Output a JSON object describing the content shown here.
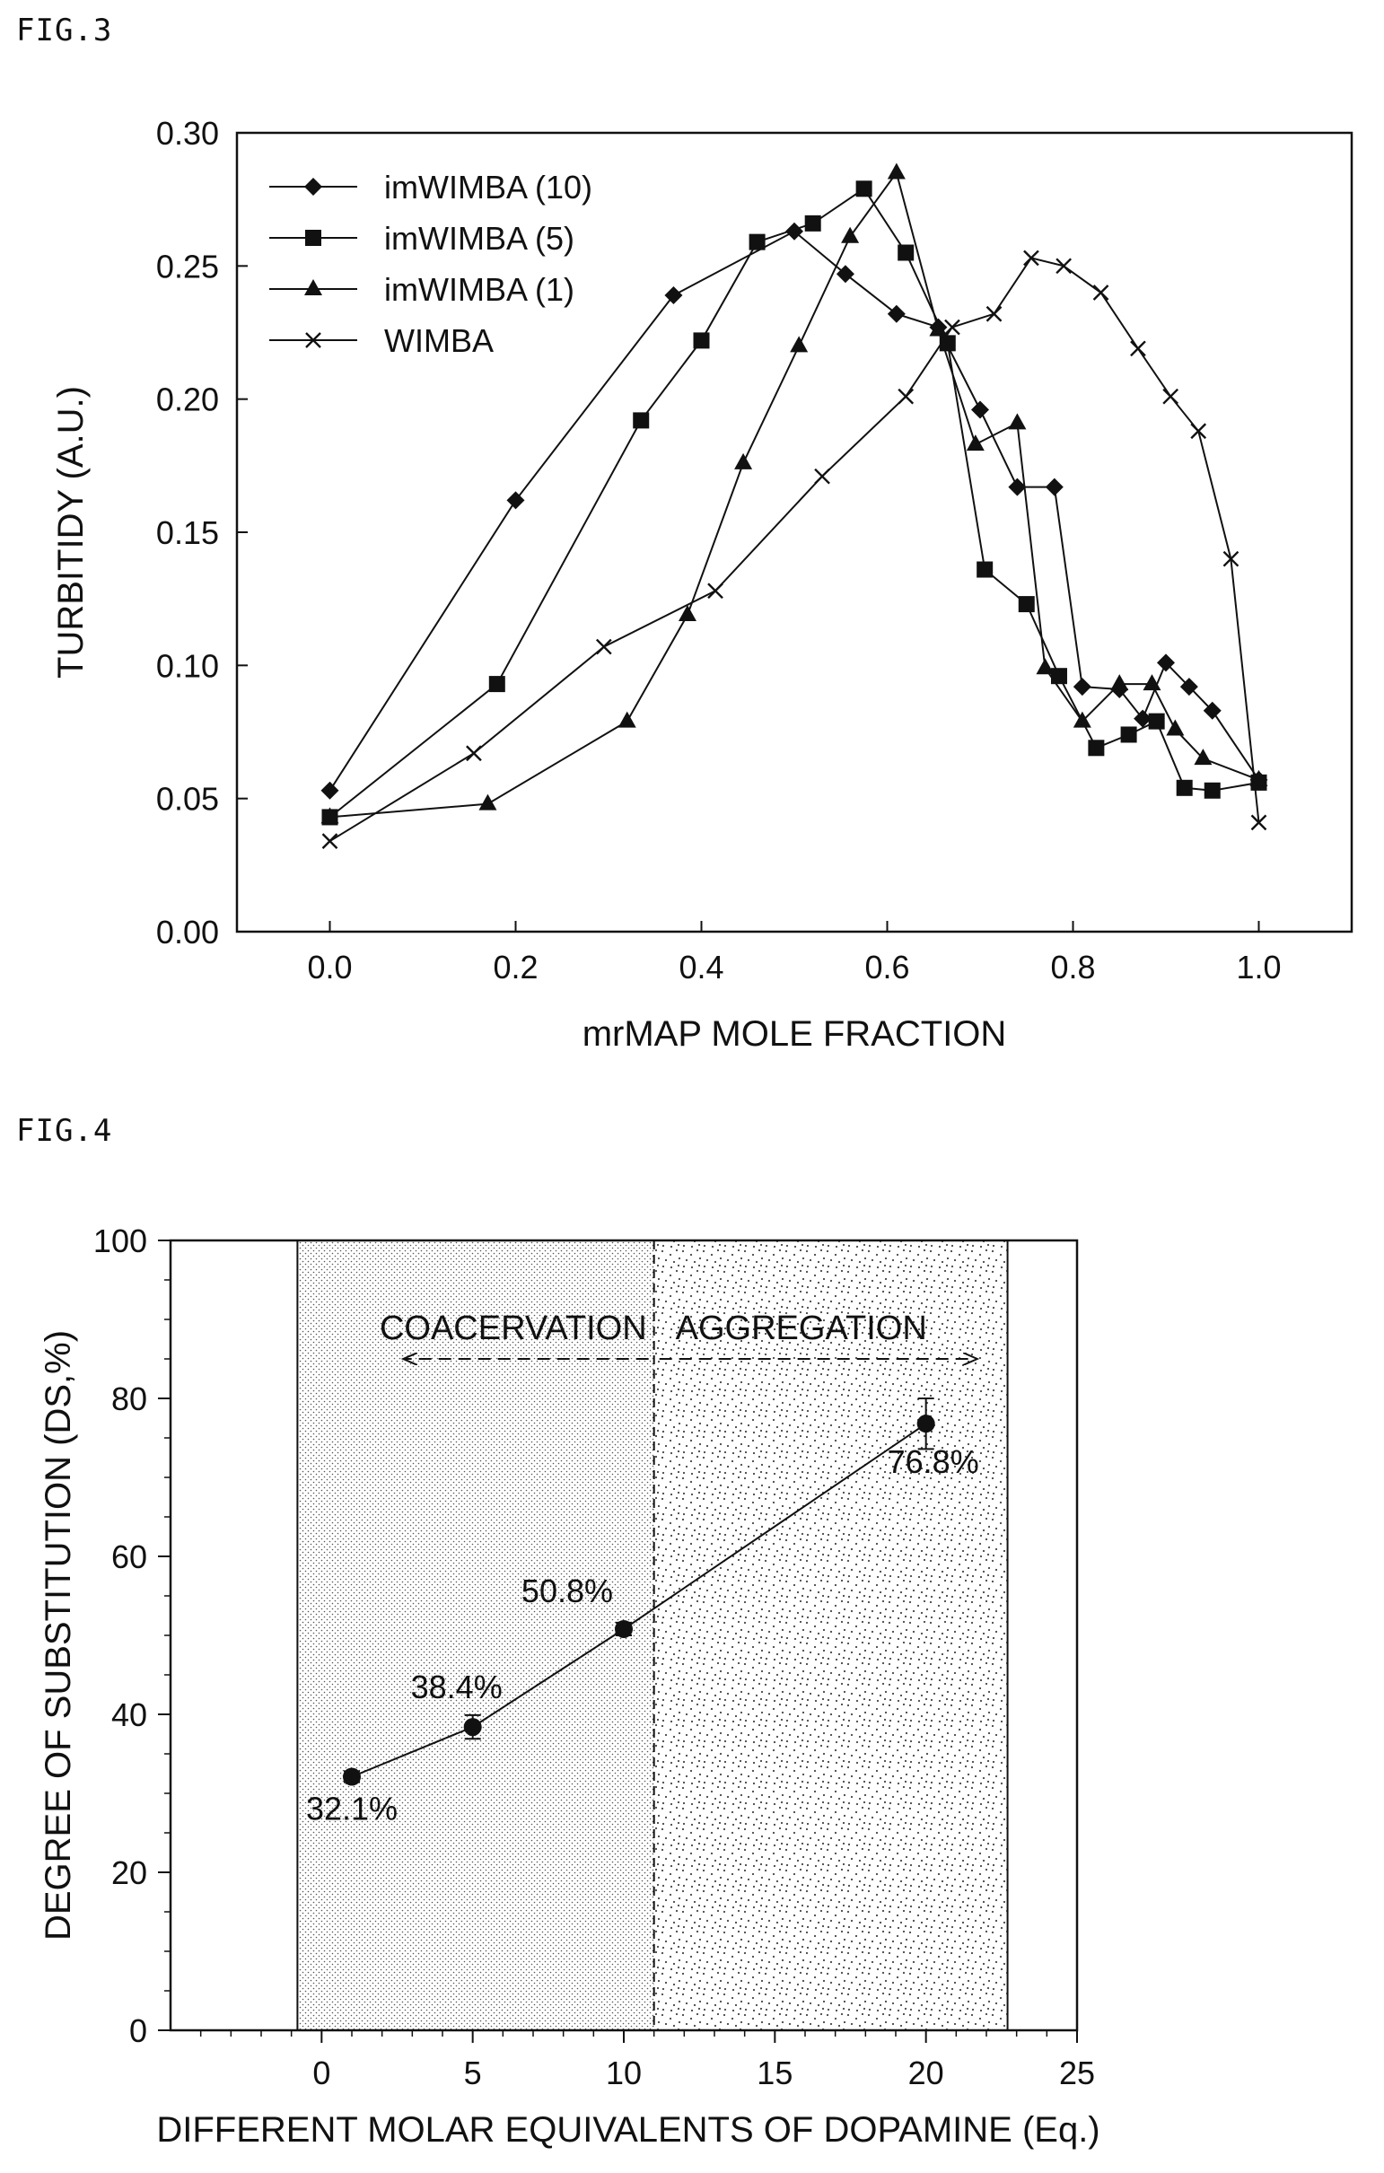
{
  "fig3": {
    "figure_label": "FIG.3",
    "chart_data": {
      "type": "line",
      "xlabel": "mrMAP MOLE FRACTION",
      "ylabel": "TURBITIDY (A.U.)",
      "xlim": [
        -0.1,
        1.1
      ],
      "ylim": [
        0.0,
        0.3
      ],
      "xticks": [
        "0.0",
        "0.2",
        "0.4",
        "0.6",
        "0.8",
        "1.0"
      ],
      "yticks": [
        "0.00",
        "0.05",
        "0.10",
        "0.15",
        "0.20",
        "0.25",
        "0.30"
      ],
      "legend_position": "top-left",
      "grid": false,
      "series": [
        {
          "name": "imWIMBA (10)",
          "marker": "diamond",
          "x": [
            0.0,
            0.2,
            0.37,
            0.5,
            0.555,
            0.61,
            0.655,
            0.7,
            0.74,
            0.78,
            0.81,
            0.85,
            0.875,
            0.9,
            0.925,
            0.95,
            1.0
          ],
          "y": [
            0.053,
            0.162,
            0.239,
            0.263,
            0.247,
            0.232,
            0.227,
            0.196,
            0.167,
            0.167,
            0.092,
            0.091,
            0.08,
            0.101,
            0.092,
            0.083,
            0.057
          ]
        },
        {
          "name": "imWIMBA (5)",
          "marker": "square",
          "x": [
            0.0,
            0.18,
            0.335,
            0.4,
            0.46,
            0.52,
            0.575,
            0.62,
            0.665,
            0.705,
            0.75,
            0.785,
            0.825,
            0.86,
            0.89,
            0.92,
            0.95,
            1.0
          ],
          "y": [
            0.043,
            0.093,
            0.192,
            0.222,
            0.259,
            0.266,
            0.279,
            0.255,
            0.221,
            0.136,
            0.123,
            0.096,
            0.069,
            0.074,
            0.079,
            0.054,
            0.053,
            0.056
          ]
        },
        {
          "name": "imWIMBA (1)",
          "marker": "triangle",
          "x": [
            0.0,
            0.17,
            0.32,
            0.385,
            0.445,
            0.505,
            0.56,
            0.61,
            0.655,
            0.695,
            0.74,
            0.77,
            0.81,
            0.85,
            0.885,
            0.91,
            0.94,
            1.0
          ],
          "y": [
            0.043,
            0.048,
            0.079,
            0.119,
            0.176,
            0.22,
            0.261,
            0.285,
            0.226,
            0.183,
            0.191,
            0.099,
            0.079,
            0.093,
            0.093,
            0.076,
            0.065,
            0.057
          ]
        },
        {
          "name": "WIMBA",
          "marker": "x",
          "x": [
            0.0,
            0.155,
            0.295,
            0.415,
            0.53,
            0.62,
            0.67,
            0.715,
            0.755,
            0.79,
            0.83,
            0.87,
            0.905,
            0.935,
            0.97,
            1.0
          ],
          "y": [
            0.034,
            0.067,
            0.107,
            0.128,
            0.171,
            0.201,
            0.227,
            0.232,
            0.253,
            0.25,
            0.24,
            0.219,
            0.201,
            0.188,
            0.14,
            0.041
          ]
        }
      ]
    }
  },
  "fig4": {
    "figure_label": "FIG.4",
    "chart_data": {
      "type": "line",
      "xlabel": "DIFFERENT MOLAR EQUIVALENTS OF DOPAMINE (Eq.)",
      "ylabel": "DEGREE OF SUBSTITUTION (DS,%)",
      "xlim": [
        -5,
        25
      ],
      "ylim": [
        0,
        100
      ],
      "xticks": [
        "0",
        "5",
        "10",
        "15",
        "20",
        "25"
      ],
      "yticks": [
        "0",
        "20",
        "40",
        "60",
        "80",
        "100"
      ],
      "grid": false,
      "regions": [
        {
          "label": "COACERVATION",
          "x_range": [
            -0.8,
            11
          ],
          "pattern": "fine-dots",
          "arrow": "left"
        },
        {
          "label": "AGGREGATION",
          "x_range": [
            11,
            22.7
          ],
          "pattern": "coarse-dots",
          "arrow": "right"
        }
      ],
      "divider_x": 11,
      "arrow_y": 85,
      "series": [
        {
          "name": "",
          "x": [
            1,
            5,
            10,
            20
          ],
          "y": [
            32.1,
            38.4,
            50.8,
            76.8
          ],
          "error": [
            0.7,
            1.5,
            0.8,
            3.2
          ],
          "data_labels": [
            "32.1%",
            "38.4%",
            "50.8%",
            "76.8%"
          ]
        }
      ]
    }
  }
}
